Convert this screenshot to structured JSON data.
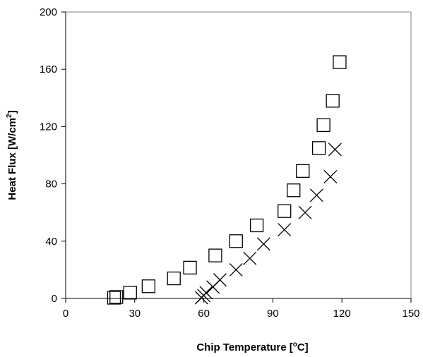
{
  "chart_data": {
    "type": "scatter",
    "title": "",
    "xlabel": "Chip Temperature [°C]",
    "xlabel_parts": [
      "Chip Temperature [",
      "o",
      "C]"
    ],
    "ylabel": "Heat Flux [W/cm²]",
    "ylabel_parts": [
      "Heat Flux [W/cm",
      "2",
      "]"
    ],
    "xlim": [
      0,
      150
    ],
    "ylim": [
      0,
      200
    ],
    "xticks": [
      "0",
      "30",
      "60",
      "90",
      "120",
      "150"
    ],
    "yticks": [
      "0",
      "40",
      "80",
      "120",
      "160",
      "200"
    ],
    "grid": false,
    "legend": "none",
    "series": [
      {
        "marker": "square",
        "color": "#000000",
        "points": [
          [
            21,
            0.5
          ],
          [
            22,
            1
          ],
          [
            28,
            4
          ],
          [
            36,
            8.5
          ],
          [
            47,
            14
          ],
          [
            54,
            21.5
          ],
          [
            65,
            30
          ],
          [
            74,
            40
          ],
          [
            83,
            51
          ],
          [
            95,
            61
          ],
          [
            99,
            75.5
          ],
          [
            103,
            89
          ],
          [
            110,
            105
          ],
          [
            112,
            121
          ],
          [
            116,
            138
          ],
          [
            119,
            165
          ]
        ]
      },
      {
        "marker": "cross",
        "color": "#000000",
        "points": [
          [
            59,
            0.5
          ],
          [
            60,
            2
          ],
          [
            61,
            4
          ],
          [
            64,
            8
          ],
          [
            67,
            13
          ],
          [
            74,
            20
          ],
          [
            80,
            28
          ],
          [
            86,
            38
          ],
          [
            95,
            48
          ],
          [
            104,
            60
          ],
          [
            109,
            72
          ],
          [
            115,
            85
          ],
          [
            117,
            104
          ]
        ]
      }
    ]
  }
}
